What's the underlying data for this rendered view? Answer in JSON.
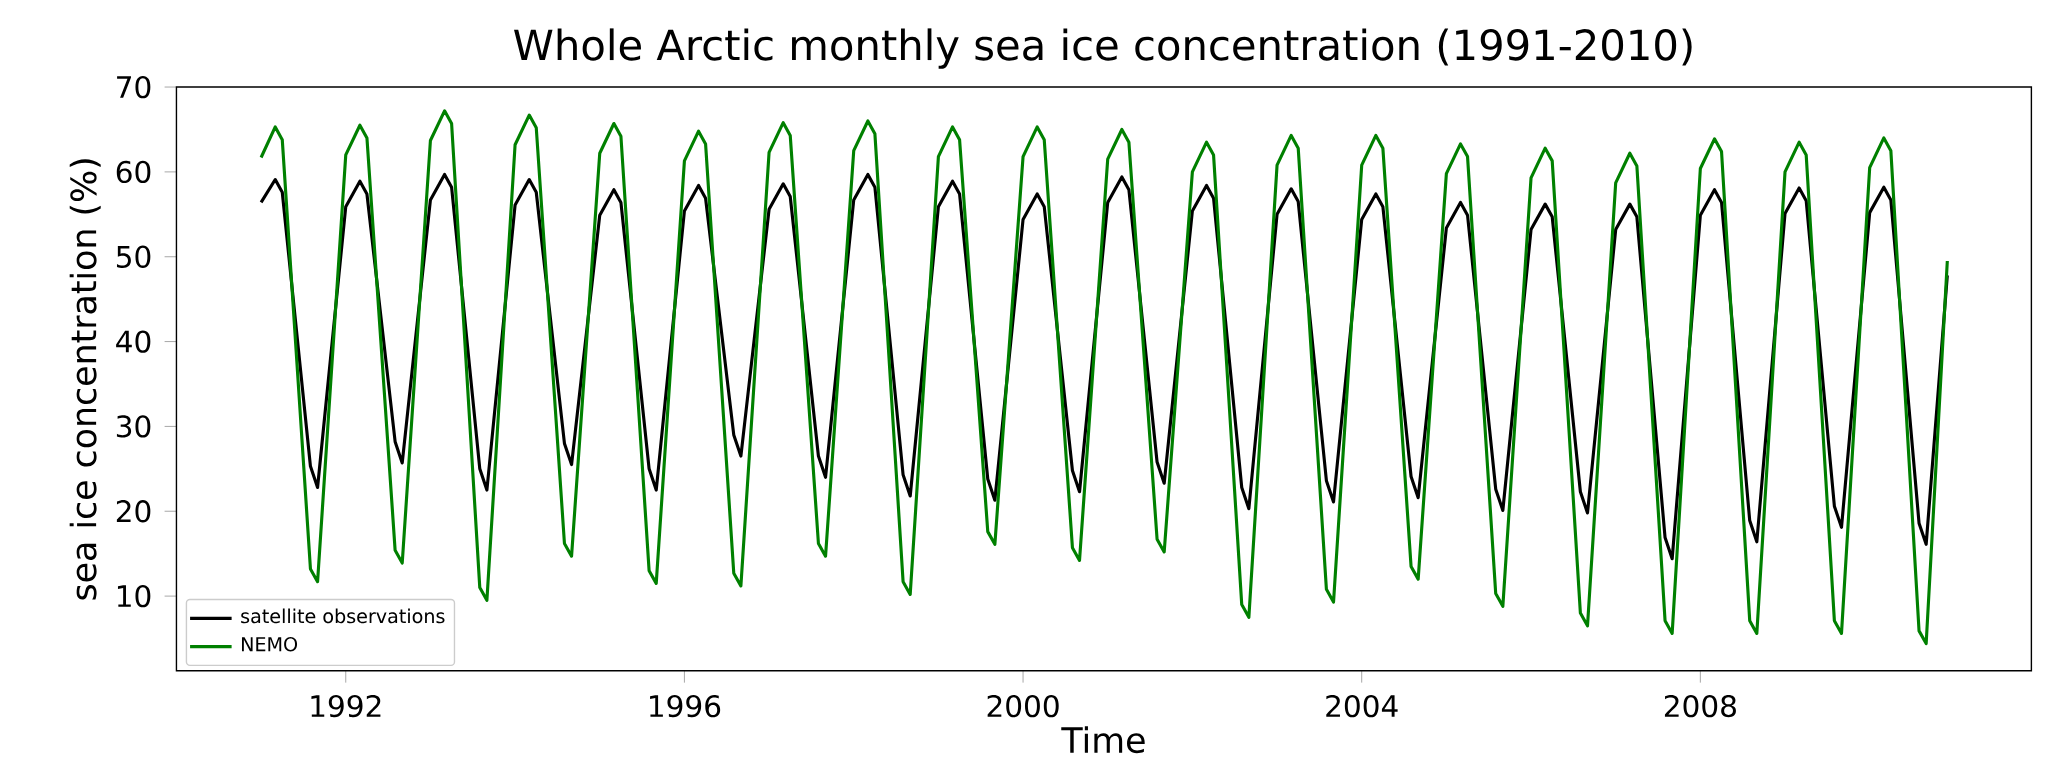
{
  "chart_data": {
    "type": "line",
    "title": "Whole Arctic monthly sea ice concentration (1991-2010)",
    "xlabel": "Time",
    "ylabel": "sea ice concentration (%)",
    "x": [
      1991,
      1991.167,
      1991.25,
      1991.583,
      1991.667,
      1992,
      1992.167,
      1992.25,
      1992.583,
      1992.667,
      1993,
      1993.167,
      1993.25,
      1993.583,
      1993.667,
      1994,
      1994.167,
      1994.25,
      1994.583,
      1994.667,
      1995,
      1995.167,
      1995.25,
      1995.583,
      1995.667,
      1996,
      1996.167,
      1996.25,
      1996.583,
      1996.667,
      1997,
      1997.167,
      1997.25,
      1997.583,
      1997.667,
      1998,
      1998.167,
      1998.25,
      1998.583,
      1998.667,
      1999,
      1999.167,
      1999.25,
      1999.583,
      1999.667,
      2000,
      2000.167,
      2000.25,
      2000.583,
      2000.667,
      2001,
      2001.167,
      2001.25,
      2001.583,
      2001.667,
      2002,
      2002.167,
      2002.25,
      2002.583,
      2002.667,
      2003,
      2003.167,
      2003.25,
      2003.583,
      2003.667,
      2004,
      2004.167,
      2004.25,
      2004.583,
      2004.667,
      2005,
      2005.167,
      2005.25,
      2005.583,
      2005.667,
      2006,
      2006.167,
      2006.25,
      2006.583,
      2006.667,
      2007,
      2007.167,
      2007.25,
      2007.583,
      2007.667,
      2008,
      2008.167,
      2008.25,
      2008.583,
      2008.667,
      2009,
      2009.167,
      2009.25,
      2009.583,
      2009.667,
      2010,
      2010.167,
      2010.25,
      2010.583,
      2010.667,
      2010.917
    ],
    "series": [
      {
        "name": "satellite observations",
        "color": "#000000",
        "values": [
          56.4,
          59.1,
          57.6,
          25.3,
          22.8,
          55.9,
          58.9,
          57.4,
          28.2,
          25.7,
          56.7,
          59.7,
          58.2,
          25.0,
          22.5,
          56.1,
          59.1,
          57.6,
          28.0,
          25.5,
          54.9,
          57.9,
          56.4,
          25.0,
          22.5,
          55.4,
          58.4,
          56.9,
          29.0,
          26.5,
          55.6,
          58.6,
          57.1,
          26.5,
          24.0,
          56.7,
          59.7,
          58.2,
          24.3,
          21.8,
          55.9,
          58.9,
          57.4,
          23.8,
          21.3,
          54.4,
          57.4,
          55.9,
          24.8,
          22.3,
          56.4,
          59.4,
          57.9,
          25.8,
          23.3,
          55.4,
          58.4,
          56.9,
          22.8,
          20.3,
          55.0,
          58.0,
          56.5,
          23.6,
          21.1,
          54.4,
          57.4,
          55.9,
          24.1,
          21.6,
          53.4,
          56.4,
          54.9,
          22.6,
          20.1,
          53.2,
          56.2,
          54.7,
          22.3,
          19.8,
          53.2,
          56.2,
          54.7,
          16.9,
          14.4,
          54.9,
          57.9,
          56.4,
          18.9,
          16.4,
          55.1,
          58.1,
          56.6,
          20.6,
          18.1,
          55.2,
          58.2,
          56.7,
          18.6,
          16.1,
          47.8
        ]
      },
      {
        "name": "NEMO",
        "color": "#008000",
        "values": [
          61.7,
          65.3,
          63.8,
          13.2,
          11.7,
          62.0,
          65.5,
          64.0,
          15.4,
          13.9,
          63.7,
          67.2,
          65.7,
          11.0,
          9.5,
          63.2,
          66.7,
          65.2,
          16.2,
          14.7,
          62.2,
          65.7,
          64.2,
          13.0,
          11.5,
          61.3,
          64.8,
          63.3,
          12.7,
          11.2,
          62.3,
          65.8,
          64.3,
          16.2,
          14.7,
          62.5,
          66.0,
          64.5,
          11.7,
          10.2,
          61.8,
          65.3,
          63.8,
          17.6,
          16.1,
          61.8,
          65.3,
          63.8,
          15.7,
          14.2,
          61.5,
          65.0,
          63.5,
          16.7,
          15.2,
          60.0,
          63.5,
          62.0,
          9.0,
          7.5,
          60.8,
          64.3,
          62.8,
          10.8,
          9.3,
          60.8,
          64.3,
          62.8,
          13.5,
          12.0,
          59.8,
          63.3,
          61.8,
          10.3,
          8.8,
          59.3,
          62.8,
          61.3,
          8.0,
          6.5,
          58.7,
          62.2,
          60.7,
          7.1,
          5.6,
          60.4,
          63.9,
          62.4,
          7.1,
          5.6,
          60.0,
          63.5,
          62.0,
          7.1,
          5.6,
          60.5,
          64.0,
          62.5,
          5.9,
          4.4,
          49.5
        ]
      }
    ],
    "xlim": [
      1990.0,
      2011.91
    ],
    "ylim": [
      1.2,
      70
    ],
    "xticks": [
      1992,
      1996,
      2000,
      2004,
      2008
    ],
    "yticks": [
      10,
      20,
      30,
      40,
      50,
      60,
      70
    ],
    "grid": false,
    "legend": "bottom left"
  }
}
